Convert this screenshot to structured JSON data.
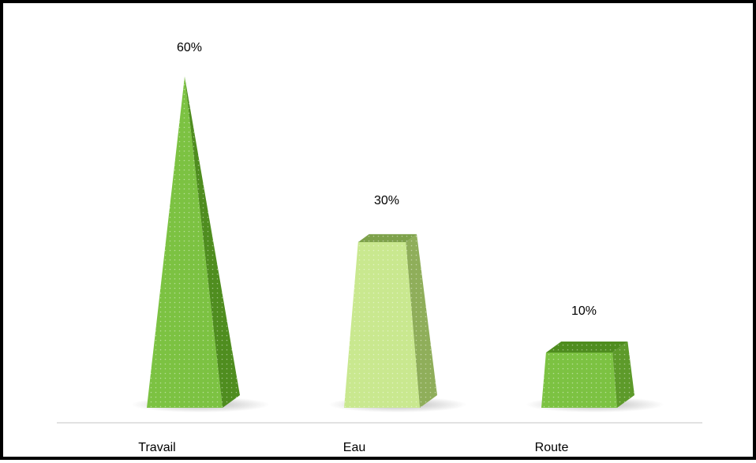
{
  "chart_data": {
    "type": "bar",
    "categories": [
      "Travail",
      "Eau",
      "Route"
    ],
    "values": [
      60,
      30,
      10
    ],
    "data_labels": [
      "60%",
      "30%",
      "10%"
    ],
    "unit": "%",
    "title": "",
    "xlabel": "",
    "ylabel": "",
    "ylim": [
      0,
      60
    ],
    "grid": false,
    "legend": "none",
    "shapes": [
      "pyramid",
      "truncated-pyramid",
      "truncated-pyramid"
    ],
    "colors": {
      "front": [
        "#7cc242",
        "#c9e88f",
        "#7cc242"
      ],
      "side": [
        "#4f8d1f",
        "#8fae5a",
        "#5d9a2a"
      ],
      "top": [
        "#6fae38",
        "#7ea24b",
        "#4f8d1f"
      ],
      "axis": "#d9d9d9"
    }
  }
}
